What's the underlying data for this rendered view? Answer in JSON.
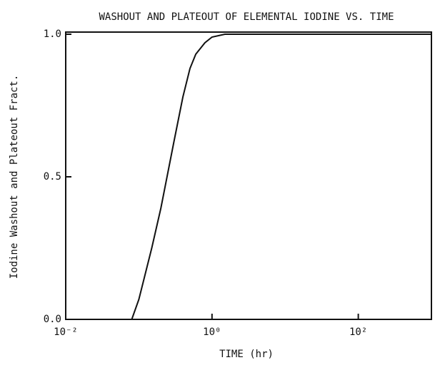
{
  "chart_data": {
    "type": "line",
    "title": "WASHOUT AND PLATEOUT OF ELEMENTAL IODINE VS. TIME",
    "x_label": "TIME (hr)",
    "y_label": "Iodine Washout and Plateout Fract.",
    "x": [
      0.08,
      0.1,
      0.15,
      0.2,
      0.3,
      0.4,
      0.5,
      0.6,
      0.8,
      1.0,
      1.5,
      2,
      10,
      100,
      1000
    ],
    "series": [
      {
        "color": "#111111",
        "values": [
          0,
          0.07,
          0.25,
          0.39,
          0.62,
          0.78,
          0.88,
          0.93,
          0.97,
          0.99,
          1,
          1,
          1,
          1,
          1
        ]
      }
    ],
    "xscale": "log",
    "xlim": [
      0.01,
      1000
    ],
    "xticks": [
      {
        "value": 0.01,
        "label": "10⁻²"
      },
      {
        "value": 1,
        "label": "10⁰"
      },
      {
        "value": 100,
        "label": "10²"
      }
    ],
    "ylim": [
      0,
      1
    ],
    "yticks": [
      {
        "value": 0,
        "label": "0.0"
      },
      {
        "value": 0.5,
        "label": "0.5"
      },
      {
        "value": 1,
        "label": "1.0"
      }
    ],
    "grid": false
  }
}
